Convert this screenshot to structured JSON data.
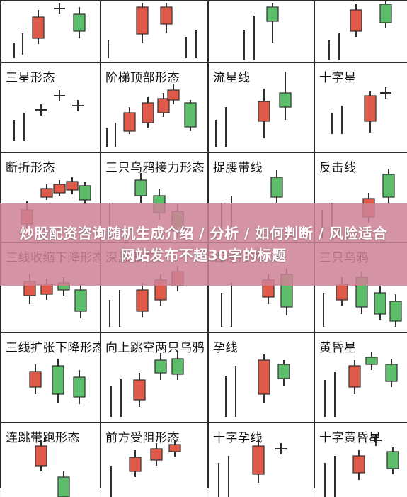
{
  "colors": {
    "up": "#e05a4a",
    "down": "#5dbd6a",
    "stroke": "#2e2e2e",
    "wick": "#2e2e2e"
  },
  "banner": {
    "title": "炒股配资咨询随机生成介绍 / 分析 / 如何判断 / 风险适合网站发布不超30字的标题"
  },
  "cells": [
    {
      "label": "",
      "candles": [
        {
          "t": "bar",
          "x": 18,
          "y0": 58,
          "y1": 80
        },
        {
          "t": "bar",
          "x": 30,
          "y0": 45,
          "y1": 75
        },
        {
          "t": "up",
          "x": 52,
          "y0": 22,
          "y1": 52,
          "w0": 12,
          "w1": 60
        },
        {
          "t": "cross",
          "x": 82,
          "y": 10
        },
        {
          "t": "down",
          "x": 110,
          "y0": 18,
          "y1": 42,
          "w0": 8,
          "w1": 52
        }
      ]
    },
    {
      "label": "",
      "candles": [
        {
          "t": "bar",
          "x": 10,
          "y0": 55,
          "y1": 80
        },
        {
          "t": "up",
          "x": 58,
          "y0": 8,
          "y1": 46,
          "w0": 2,
          "w1": 58
        },
        {
          "t": "up",
          "x": 92,
          "y0": 8,
          "y1": 32,
          "w0": 2,
          "w1": 44
        },
        {
          "t": "bar",
          "x": 120,
          "y0": 50,
          "y1": 80
        },
        {
          "t": "bar",
          "x": 134,
          "y0": 40,
          "y1": 80
        }
      ]
    },
    {
      "label": "",
      "candles": [
        {
          "t": "bar",
          "x": 50,
          "y0": 40,
          "y1": 82
        },
        {
          "t": "bar",
          "x": 64,
          "y0": 20,
          "y1": 82
        },
        {
          "t": "down",
          "x": 90,
          "y0": 8,
          "y1": 28,
          "w0": 2,
          "w1": 58
        }
      ]
    },
    {
      "label": "",
      "candles": [
        {
          "t": "bar",
          "x": 20,
          "y0": 55,
          "y1": 82
        },
        {
          "t": "bar",
          "x": 34,
          "y0": 45,
          "y1": 82
        },
        {
          "t": "up",
          "x": 58,
          "y0": 12,
          "y1": 42,
          "w0": 4,
          "w1": 50
        },
        {
          "t": "down",
          "x": 100,
          "y0": 4,
          "y1": 30,
          "w0": 0,
          "w1": 38
        }
      ]
    },
    {
      "label": "三星形态",
      "candles": [
        {
          "t": "bar",
          "x": 18,
          "y0": 80,
          "y1": 110
        },
        {
          "t": "bar",
          "x": 32,
          "y0": 70,
          "y1": 110
        },
        {
          "t": "cross",
          "x": 56,
          "y": 66
        },
        {
          "t": "cross",
          "x": 82,
          "y": 46
        },
        {
          "t": "cross",
          "x": 108,
          "y": 60
        }
      ]
    },
    {
      "label": "阶梯顶部形态",
      "candles": [
        {
          "t": "bar",
          "x": 8,
          "y0": 92,
          "y1": 118
        },
        {
          "t": "bar",
          "x": 20,
          "y0": 84,
          "y1": 118
        },
        {
          "t": "up",
          "x": 40,
          "y0": 70,
          "y1": 96,
          "w0": 62,
          "w1": 100
        },
        {
          "t": "up",
          "x": 66,
          "y0": 56,
          "y1": 84,
          "w0": 48,
          "w1": 92
        },
        {
          "t": "up",
          "x": 88,
          "y0": 50,
          "y1": 70,
          "w0": 42,
          "w1": 76
        },
        {
          "t": "up",
          "x": 102,
          "y0": 38,
          "y1": 52,
          "w0": 30,
          "w1": 58
        },
        {
          "t": "down",
          "x": 126,
          "y0": 56,
          "y1": 90,
          "w0": 52,
          "w1": 96
        }
      ]
    },
    {
      "label": "流星线",
      "candles": [
        {
          "t": "bar",
          "x": 10,
          "y0": 80,
          "y1": 118
        },
        {
          "t": "bar",
          "x": 24,
          "y0": 62,
          "y1": 118
        },
        {
          "t": "up",
          "x": 78,
          "y0": 54,
          "y1": 82,
          "w0": 36,
          "w1": 106
        },
        {
          "t": "down",
          "x": 108,
          "y0": 42,
          "y1": 62,
          "w0": 12,
          "w1": 80
        }
      ]
    },
    {
      "label": "十字星",
      "candles": [
        {
          "t": "bar",
          "x": 24,
          "y0": 70,
          "y1": 100
        },
        {
          "t": "bar",
          "x": 38,
          "y0": 60,
          "y1": 100
        },
        {
          "t": "up",
          "x": 78,
          "y0": 46,
          "y1": 82,
          "w0": 40,
          "w1": 98
        },
        {
          "t": "cross",
          "x": 100,
          "y": 42
        }
      ]
    },
    {
      "label": "断折形态",
      "candles": [
        {
          "t": "up",
          "x": 36,
          "y0": 80,
          "y1": 100,
          "w0": 68,
          "w1": 110
        },
        {
          "t": "up",
          "x": 64,
          "y0": 50,
          "y1": 62,
          "w0": 44,
          "w1": 66
        },
        {
          "t": "up",
          "x": 82,
          "y0": 44,
          "y1": 56,
          "w0": 38,
          "w1": 60
        },
        {
          "t": "up",
          "x": 100,
          "y0": 40,
          "y1": 52,
          "w0": 34,
          "w1": 58
        },
        {
          "t": "down",
          "x": 118,
          "y0": 46,
          "y1": 66,
          "w0": 40,
          "w1": 72
        }
      ]
    },
    {
      "label": "三只乌鸦接力形态",
      "candles": [
        {
          "t": "bar",
          "x": 12,
          "y0": 70,
          "y1": 120
        },
        {
          "t": "down",
          "x": 56,
          "y0": 38,
          "y1": 60,
          "w0": 28,
          "w1": 70
        },
        {
          "t": "down",
          "x": 82,
          "y0": 60,
          "y1": 84,
          "w0": 50,
          "w1": 94
        },
        {
          "t": "down",
          "x": 108,
          "y0": 82,
          "y1": 110,
          "w0": 72,
          "w1": 120
        }
      ]
    },
    {
      "label": "捉腰带线",
      "candles": [
        {
          "t": "bar",
          "x": 18,
          "y0": 70,
          "y1": 120
        },
        {
          "t": "bar",
          "x": 32,
          "y0": 60,
          "y1": 120
        },
        {
          "t": "down",
          "x": 96,
          "y0": 34,
          "y1": 62,
          "w0": 24,
          "w1": 70
        }
      ]
    },
    {
      "label": "反击线",
      "candles": [
        {
          "t": "bar",
          "x": 10,
          "y0": 80,
          "y1": 120
        },
        {
          "t": "bar",
          "x": 24,
          "y0": 70,
          "y1": 120
        },
        {
          "t": "up",
          "x": 76,
          "y0": 64,
          "y1": 90,
          "w0": 56,
          "w1": 98
        },
        {
          "t": "down",
          "x": 104,
          "y0": 30,
          "y1": 62,
          "w0": 22,
          "w1": 70
        }
      ]
    },
    {
      "label": "三线收缩下降形态",
      "candles": [
        {
          "t": "up",
          "x": 40,
          "y0": 54,
          "y1": 74,
          "w0": 44,
          "w1": 86
        },
        {
          "t": "up",
          "x": 64,
          "y0": 58,
          "y1": 72,
          "w0": 50,
          "w1": 80
        },
        {
          "t": "down",
          "x": 88,
          "y0": 56,
          "y1": 66,
          "w0": 48,
          "w1": 74
        },
        {
          "t": "down",
          "x": 112,
          "y0": 66,
          "y1": 96,
          "w0": 58,
          "w1": 106
        }
      ]
    },
    {
      "label": "深思形态",
      "candles": [
        {
          "t": "bar",
          "x": 12,
          "y0": 80,
          "y1": 118
        },
        {
          "t": "bar",
          "x": 26,
          "y0": 66,
          "y1": 118
        },
        {
          "t": "up",
          "x": 58,
          "y0": 66,
          "y1": 96,
          "w0": 56,
          "w1": 104
        },
        {
          "t": "up",
          "x": 84,
          "y0": 52,
          "y1": 80,
          "w0": 44,
          "w1": 88
        },
        {
          "t": "up",
          "x": 108,
          "y0": 40,
          "y1": 60,
          "w0": 32,
          "w1": 68
        }
      ]
    },
    {
      "label": "吞没形态",
      "candles": [
        {
          "t": "bar",
          "x": 18,
          "y0": 70,
          "y1": 118
        },
        {
          "t": "bar",
          "x": 32,
          "y0": 56,
          "y1": 118
        },
        {
          "t": "up",
          "x": 84,
          "y0": 52,
          "y1": 76,
          "w0": 44,
          "w1": 86
        },
        {
          "t": "down",
          "x": 110,
          "y0": 44,
          "y1": 90,
          "w0": 36,
          "w1": 102
        }
      ]
    },
    {
      "label": "三只乌鸦",
      "candles": [
        {
          "t": "bar",
          "x": 12,
          "y0": 70,
          "y1": 118
        },
        {
          "t": "up",
          "x": 38,
          "y0": 58,
          "y1": 80,
          "w0": 48,
          "w1": 88
        },
        {
          "t": "down",
          "x": 66,
          "y0": 48,
          "y1": 90,
          "w0": 40,
          "w1": 100
        },
        {
          "t": "down",
          "x": 92,
          "y0": 70,
          "y1": 100,
          "w0": 60,
          "w1": 108
        },
        {
          "t": "down",
          "x": 114,
          "y0": 82,
          "y1": 110,
          "w0": 72,
          "w1": 118
        }
      ]
    },
    {
      "label": "三线扩张下降形态",
      "candles": [
        {
          "t": "up",
          "x": 48,
          "y0": 54,
          "y1": 76,
          "w0": 44,
          "w1": 86
        },
        {
          "t": "down",
          "x": 80,
          "y0": 46,
          "y1": 86,
          "w0": 36,
          "w1": 98
        },
        {
          "t": "down",
          "x": 110,
          "y0": 62,
          "y1": 90,
          "w0": 52,
          "w1": 100
        }
      ]
    },
    {
      "label": "向上跳空两只乌鸦",
      "candles": [
        {
          "t": "bar",
          "x": 14,
          "y0": 74,
          "y1": 118
        },
        {
          "t": "bar",
          "x": 28,
          "y0": 64,
          "y1": 118
        },
        {
          "t": "up",
          "x": 54,
          "y0": 66,
          "y1": 94,
          "w0": 56,
          "w1": 104
        },
        {
          "t": "down",
          "x": 84,
          "y0": 38,
          "y1": 56,
          "w0": 28,
          "w1": 66
        },
        {
          "t": "down",
          "x": 108,
          "y0": 36,
          "y1": 58,
          "w0": 26,
          "w1": 66
        }
      ]
    },
    {
      "label": "孕线",
      "candles": [
        {
          "t": "bar",
          "x": 24,
          "y0": 60,
          "y1": 118
        },
        {
          "t": "bar",
          "x": 38,
          "y0": 46,
          "y1": 118
        },
        {
          "t": "up",
          "x": 78,
          "y0": 38,
          "y1": 86,
          "w0": 30,
          "w1": 98
        },
        {
          "t": "down",
          "x": 106,
          "y0": 44,
          "y1": 64,
          "w0": 38,
          "w1": 74
        }
      ]
    },
    {
      "label": "黄昏星",
      "candles": [
        {
          "t": "bar",
          "x": 14,
          "y0": 66,
          "y1": 118
        },
        {
          "t": "bar",
          "x": 28,
          "y0": 54,
          "y1": 118
        },
        {
          "t": "up",
          "x": 56,
          "y0": 46,
          "y1": 76,
          "w0": 38,
          "w1": 86
        },
        {
          "t": "down",
          "x": 80,
          "y0": 34,
          "y1": 44,
          "w0": 26,
          "w1": 52
        },
        {
          "t": "down",
          "x": 108,
          "y0": 44,
          "y1": 68,
          "w0": 36,
          "w1": 76
        }
      ]
    },
    {
      "label": "连跳带跑形态",
      "candles": [
        {
          "t": "up",
          "x": 56,
          "y0": 32,
          "y1": 60,
          "w0": 24,
          "w1": 68
        },
        {
          "t": "down",
          "x": 88,
          "y0": 76,
          "y1": 104,
          "w0": 68,
          "w1": 104
        }
      ]
    },
    {
      "label": "前方受阻形态",
      "candles": [
        {
          "t": "bar",
          "x": 14,
          "y0": 60,
          "y1": 104
        },
        {
          "t": "up",
          "x": 48,
          "y0": 48,
          "y1": 68,
          "w0": 38,
          "w1": 76
        },
        {
          "t": "up",
          "x": 78,
          "y0": 36,
          "y1": 52,
          "w0": 28,
          "w1": 60
        },
        {
          "t": "up",
          "x": 104,
          "y0": 30,
          "y1": 40,
          "w0": 24,
          "w1": 48
        }
      ]
    },
    {
      "label": "十字孕线",
      "candles": [
        {
          "t": "bar",
          "x": 14,
          "y0": 56,
          "y1": 104
        },
        {
          "t": "bar",
          "x": 28,
          "y0": 46,
          "y1": 104
        },
        {
          "t": "up",
          "x": 70,
          "y0": 32,
          "y1": 72,
          "w0": 24,
          "w1": 84
        },
        {
          "t": "cross",
          "x": 102,
          "y": 36
        }
      ]
    },
    {
      "label": "十字黄昏星",
      "candles": [
        {
          "t": "bar",
          "x": 14,
          "y0": 56,
          "y1": 104
        },
        {
          "t": "bar",
          "x": 28,
          "y0": 46,
          "y1": 104
        },
        {
          "t": "up",
          "x": 62,
          "y0": 46,
          "y1": 70,
          "w0": 38,
          "w1": 80
        },
        {
          "t": "cross",
          "x": 86,
          "y": 24
        },
        {
          "t": "down",
          "x": 110,
          "y0": 40,
          "y1": 64,
          "w0": 34,
          "w1": 72
        }
      ]
    }
  ]
}
